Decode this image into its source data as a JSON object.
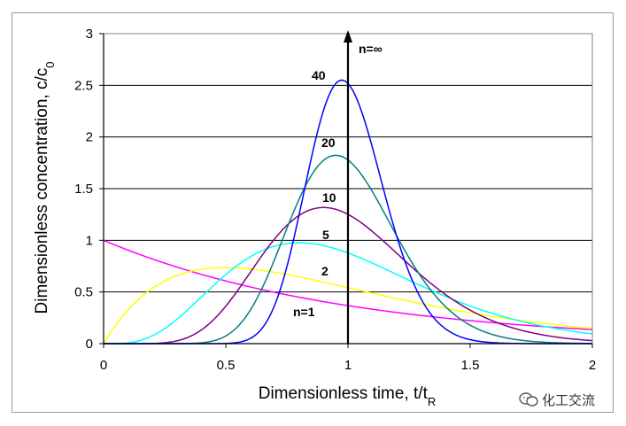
{
  "chart_data": {
    "type": "line",
    "xlabel": "Dimensionless time, t/t",
    "xlabel_sub": "R",
    "ylabel": "Dimensionless concentration, c/c",
    "ylabel_sub": "0",
    "xlim": [
      0,
      2
    ],
    "ylim": [
      0,
      3
    ],
    "x_ticks": [
      "0",
      "0.5",
      "1",
      "1.5",
      "2"
    ],
    "y_ticks": [
      "0",
      "0.5",
      "1",
      "1.5",
      "2",
      "2.5",
      "3"
    ],
    "grid": "horizontal",
    "series": [
      {
        "name": "n=1",
        "n": 1,
        "color": "#ff00ff"
      },
      {
        "name": "2",
        "n": 2,
        "color": "#ffff00"
      },
      {
        "name": "5",
        "n": 5,
        "color": "#00ffff"
      },
      {
        "name": "10",
        "n": 10,
        "color": "#800080"
      },
      {
        "name": "20",
        "n": 20,
        "color": "#008080"
      },
      {
        "name": "40",
        "n": 40,
        "color": "#0000ff"
      }
    ],
    "annotations": [
      {
        "text": "n=∞",
        "x": 1.0,
        "y": 3.0
      }
    ]
  },
  "watermark": {
    "text": "化工交流"
  }
}
